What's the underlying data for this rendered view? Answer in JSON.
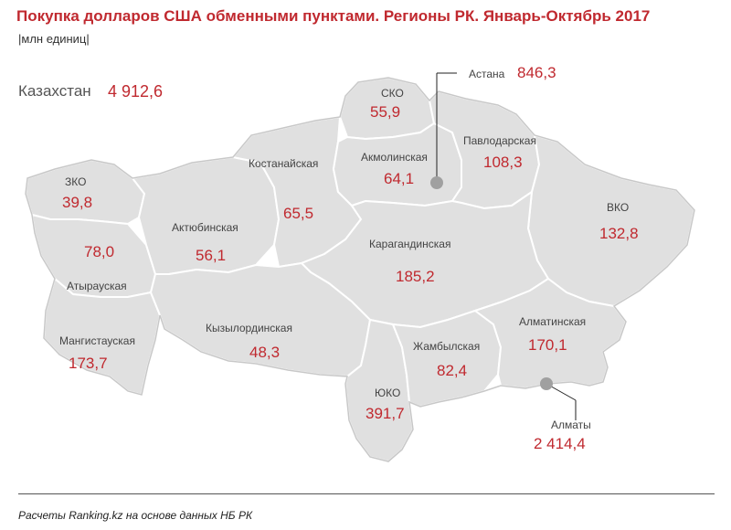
{
  "title": "Покупка долларов США обменными пунктами. Регионы РК. Январь-Октябрь 2017",
  "unit": "|млн единиц|",
  "total": {
    "label": "Казахстан",
    "value": "4 912,6"
  },
  "regions": {
    "zko": {
      "name": "ЗКО",
      "value": "39,8"
    },
    "atyrau": {
      "name": "Атырауская",
      "value": "78,0"
    },
    "mangystau": {
      "name": "Мангистауская",
      "value": "173,7"
    },
    "aktobe": {
      "name": "Актюбинская",
      "value": "56,1"
    },
    "kostanay": {
      "name": "Костанайская",
      "value": "65,5"
    },
    "sko": {
      "name": "СКО",
      "value": "55,9"
    },
    "akmola": {
      "name": "Акмолинская",
      "value": "64,1"
    },
    "pavlodar": {
      "name": "Павлодарская",
      "value": "108,3"
    },
    "vko": {
      "name": "ВКО",
      "value": "132,8"
    },
    "karaganda": {
      "name": "Карагандинская",
      "value": "185,2"
    },
    "kyzylorda": {
      "name": "Кызылординская",
      "value": "48,3"
    },
    "zhambyl": {
      "name": "Жамбылская",
      "value": "82,4"
    },
    "almaty_region": {
      "name": "Алматинская",
      "value": "170,1"
    },
    "uko": {
      "name": "ЮКО",
      "value": "391,7"
    }
  },
  "cities": {
    "astana": {
      "name": "Астана",
      "value": "846,3"
    },
    "almaty": {
      "name": "Алматы",
      "value": "2 414,4"
    }
  },
  "source": "Расчеты Ranking.kz на основе данных НБ РК",
  "colors": {
    "accent": "#c0292f",
    "region_fill": "#e0e0e0",
    "city_marker": "#a0a0a0"
  }
}
